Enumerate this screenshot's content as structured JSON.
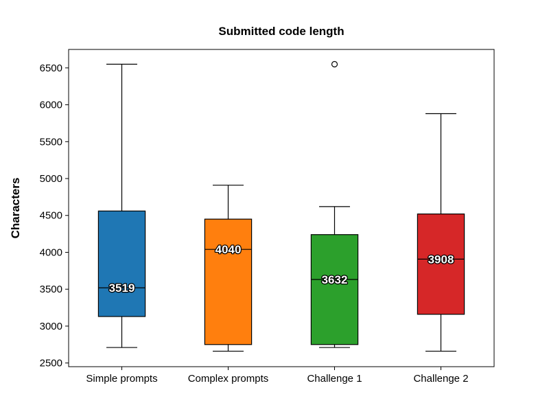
{
  "chart_data": {
    "type": "box",
    "title": "Submitted code length",
    "xlabel": "",
    "ylabel": "Characters",
    "ylim": [
      2450,
      6750
    ],
    "yticks": [
      2500,
      3000,
      3500,
      4000,
      4500,
      5000,
      5500,
      6000,
      6500
    ],
    "categories": [
      "Simple prompts",
      "Complex prompts",
      "Challenge 1",
      "Challenge 2"
    ],
    "boxes": [
      {
        "category": "Simple prompts",
        "whisker_low": 2710,
        "q1": 3130,
        "median": 3519,
        "q3": 4560,
        "whisker_high": 6550,
        "outliers": [],
        "color": "#1f77b4",
        "median_label": "3519"
      },
      {
        "category": "Complex prompts",
        "whisker_low": 2660,
        "q1": 2750,
        "median": 4040,
        "q3": 4450,
        "whisker_high": 4910,
        "outliers": [],
        "color": "#ff7f0e",
        "median_label": "4040"
      },
      {
        "category": "Challenge 1",
        "whisker_low": 2710,
        "q1": 2750,
        "median": 3632,
        "q3": 4240,
        "whisker_high": 4620,
        "outliers": [
          6550
        ],
        "color": "#2ca02c",
        "median_label": "3632"
      },
      {
        "category": "Challenge 2",
        "whisker_low": 2660,
        "q1": 3160,
        "median": 3908,
        "q3": 4520,
        "whisker_high": 5880,
        "outliers": [],
        "color": "#d62728",
        "median_label": "3908"
      }
    ],
    "grid": false,
    "legend": "none"
  }
}
